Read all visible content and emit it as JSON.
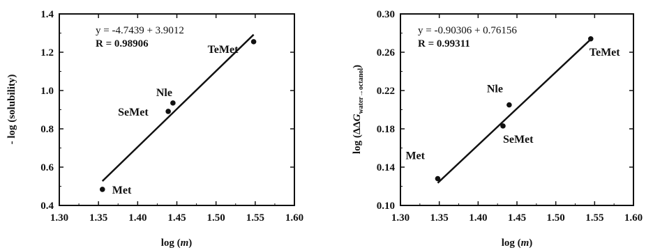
{
  "chart_data": [
    {
      "type": "scatter",
      "xlabel": "log (m)",
      "ylabel": "- log (solubility)",
      "xlim": [
        1.3,
        1.6
      ],
      "ylim": [
        0.4,
        1.4
      ],
      "xticks": [
        "1.30",
        "1.35",
        "1.40",
        "1.45",
        "1.50",
        "1.55",
        "1.60"
      ],
      "yticks": [
        "0.4",
        "0.6",
        "0.8",
        "1.0",
        "1.2",
        "1.4"
      ],
      "equation": "y = -4.7439 + 3.9012",
      "r_value": "R = 0.98906",
      "fit_line": {
        "x": [
          1.355,
          1.548
        ],
        "y": [
          0.527,
          1.292
        ]
      },
      "points": [
        {
          "label": "Met",
          "x": 1.355,
          "y": 0.484
        },
        {
          "label": "SeMet",
          "x": 1.439,
          "y": 0.891
        },
        {
          "label": "Nle",
          "x": 1.445,
          "y": 0.935
        },
        {
          "label": "TeMet",
          "x": 1.548,
          "y": 1.255
        }
      ]
    },
    {
      "type": "scatter",
      "xlabel": "log (m)",
      "ylabel": "log (ΔΔG water→octanol)",
      "xlim": [
        1.3,
        1.6
      ],
      "ylim": [
        0.1,
        0.3
      ],
      "xticks": [
        "1.30",
        "1.35",
        "1.40",
        "1.45",
        "1.50",
        "1.55",
        "1.60"
      ],
      "yticks": [
        "0.10",
        "0.14",
        "0.18",
        "0.22",
        "0.26",
        "0.30"
      ],
      "equation": "y = -0.90306 + 0.76156",
      "r_value": "R = 0.99311",
      "fit_line": {
        "x": [
          1.348,
          1.545
        ],
        "y": [
          0.1235,
          0.2735
        ]
      },
      "points": [
        {
          "label": "Met",
          "x": 1.348,
          "y": 0.128
        },
        {
          "label": "SeMet",
          "x": 1.432,
          "y": 0.183
        },
        {
          "label": "Nle",
          "x": 1.44,
          "y": 0.205
        },
        {
          "label": "TeMet",
          "x": 1.545,
          "y": 0.274
        }
      ]
    }
  ]
}
